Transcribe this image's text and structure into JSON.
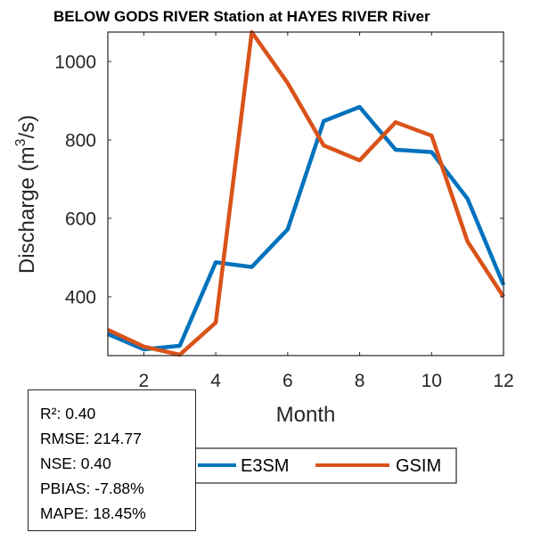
{
  "chart_data": {
    "type": "line",
    "title": "BELOW GODS RIVER  Station at  HAYES RIVER  River",
    "xlabel": "Month",
    "ylabel": "Discharge (m",
    "ylabel_superscript": "3",
    "ylabel_suffix": "/s)",
    "xlim": [
      1,
      12
    ],
    "ylim": [
      250,
      1075
    ],
    "grid": false,
    "xticks": [
      2,
      4,
      6,
      8,
      10,
      12
    ],
    "xtick_labels": [
      "2",
      "4",
      "6",
      "8",
      "10",
      "12"
    ],
    "yticks": [
      400,
      600,
      800,
      1000
    ],
    "ytick_labels": [
      "400",
      "600",
      "800",
      "1000"
    ],
    "x": [
      1,
      2,
      3,
      4,
      5,
      6,
      7,
      8,
      9,
      10,
      11,
      12
    ],
    "series": [
      {
        "name": "E3SM",
        "color": "#0072BD",
        "values": [
          305,
          266,
          275,
          488,
          476,
          572,
          848,
          884,
          775,
          769,
          650,
          430
        ]
      },
      {
        "name": "GSIM",
        "color": "#D95319",
        "values": [
          316,
          273,
          252,
          334,
          1075,
          945,
          786,
          748,
          845,
          811,
          541,
          400
        ]
      }
    ],
    "legend": {
      "placement": "bottom-outside",
      "entries": [
        "E3SM",
        "GSIM"
      ]
    },
    "annotations": {
      "stats": [
        "R²: 0.40",
        "RMSE: 214.77",
        "NSE: 0.40",
        "PBIAS: -7.88%",
        "MAPE: 18.45%"
      ]
    }
  }
}
